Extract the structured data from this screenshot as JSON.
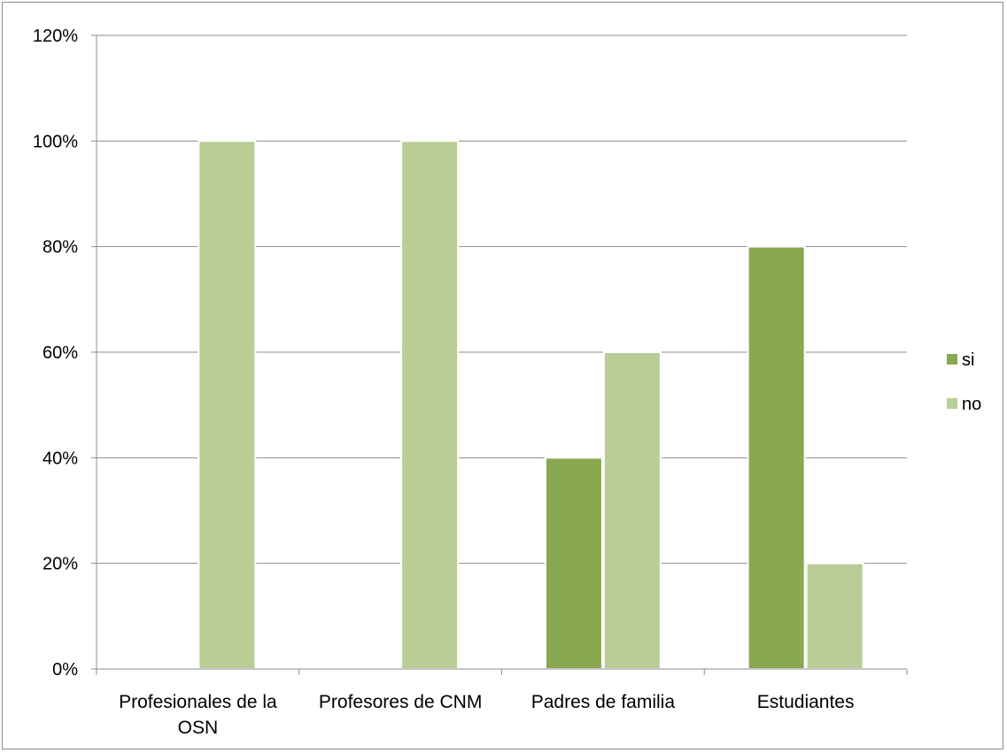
{
  "chart_data": {
    "type": "bar",
    "categories": [
      [
        "Profesionales de la",
        "OSN"
      ],
      [
        "Profesores de CNM"
      ],
      [
        "Padres de familia"
      ],
      [
        "Estudiantes"
      ]
    ],
    "series": [
      {
        "name": "si",
        "values": [
          0,
          0,
          40,
          80
        ],
        "color": "#8aa84f"
      },
      {
        "name": "no",
        "values": [
          100,
          100,
          60,
          20
        ],
        "color": "#b9ce96"
      }
    ],
    "yticks": [
      "0%",
      "20%",
      "40%",
      "60%",
      "80%",
      "100%",
      "120%"
    ],
    "ylim": [
      0,
      120
    ],
    "title": "",
    "xlabel": "",
    "ylabel": "",
    "grid": true,
    "legend_position": "right"
  }
}
